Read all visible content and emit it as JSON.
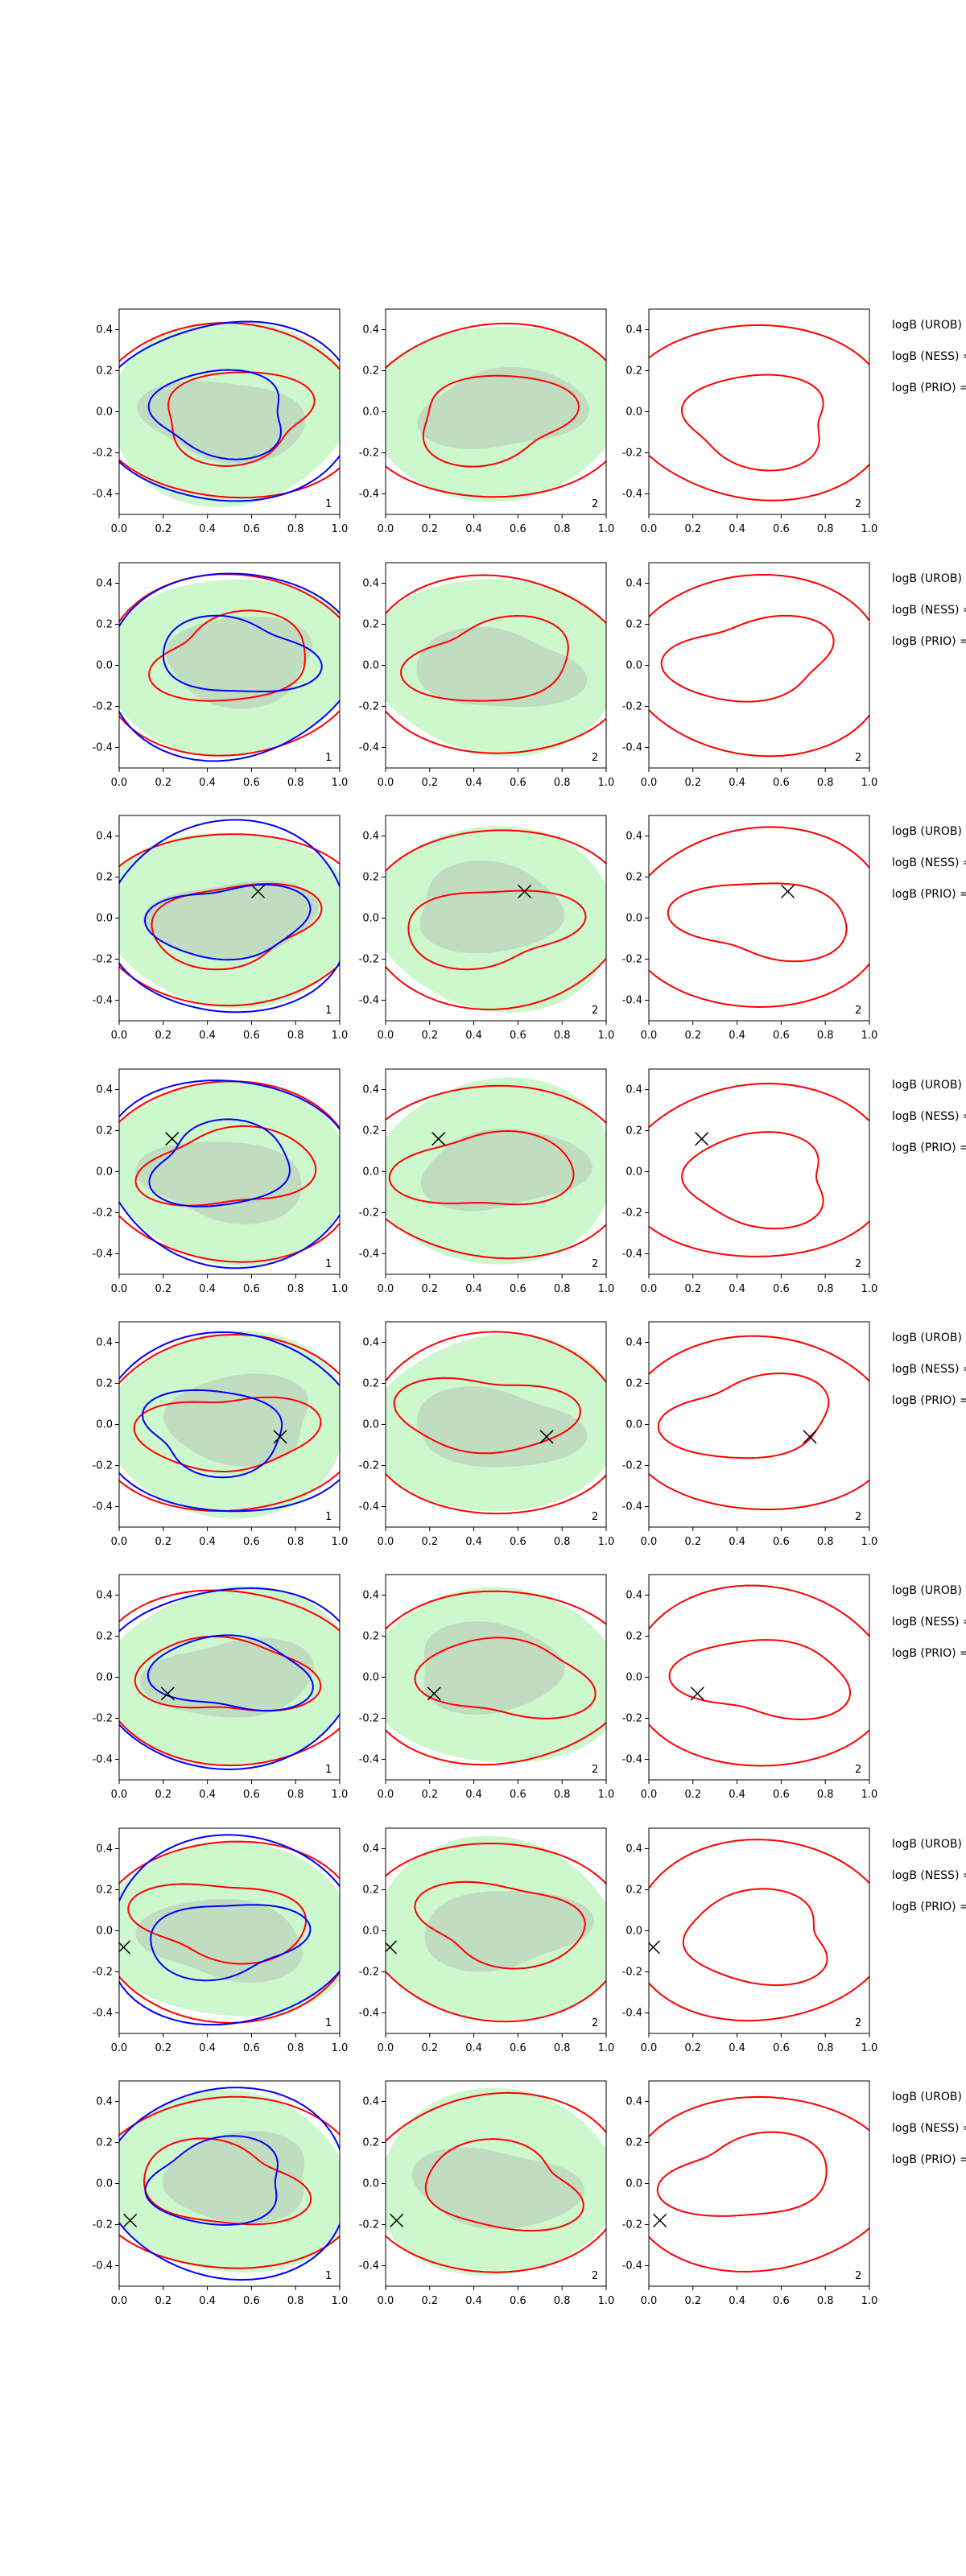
{
  "colors": {
    "fill_outer": "#90EE90",
    "fill_inner": "#B8C9B8",
    "line_a": "#ff0000",
    "line_b": "#0000ff",
    "marker": "#000000"
  },
  "chart_data": {
    "type": "contour",
    "axes": {
      "xlim": [
        0,
        1
      ],
      "ylim": [
        -0.5,
        0.5
      ],
      "xticks": [
        "0.0",
        "0.2",
        "0.4",
        "0.6",
        "0.8",
        "1.0"
      ],
      "yticks": [
        "0.4",
        "0.2",
        "0.0",
        "-0.2",
        "-0.4"
      ],
      "yticks_vals": [
        0.4,
        0.2,
        0.0,
        -0.2,
        -0.4
      ]
    },
    "legend_labels": [
      "logB (UROB) =",
      "logB (NESS) =",
      "logB (PRIO) ="
    ],
    "rows": [
      {
        "marker": null
      },
      {
        "marker": null
      },
      {
        "marker": [
          0.63,
          0.13
        ]
      },
      {
        "marker": [
          0.24,
          0.16
        ]
      },
      {
        "marker": [
          0.73,
          -0.06
        ]
      },
      {
        "marker": [
          0.22,
          -0.08
        ]
      },
      {
        "marker": [
          0.02,
          -0.08
        ]
      },
      {
        "marker": [
          0.05,
          -0.18
        ]
      }
    ],
    "panel_labels": [
      "1",
      "2",
      "2"
    ]
  }
}
